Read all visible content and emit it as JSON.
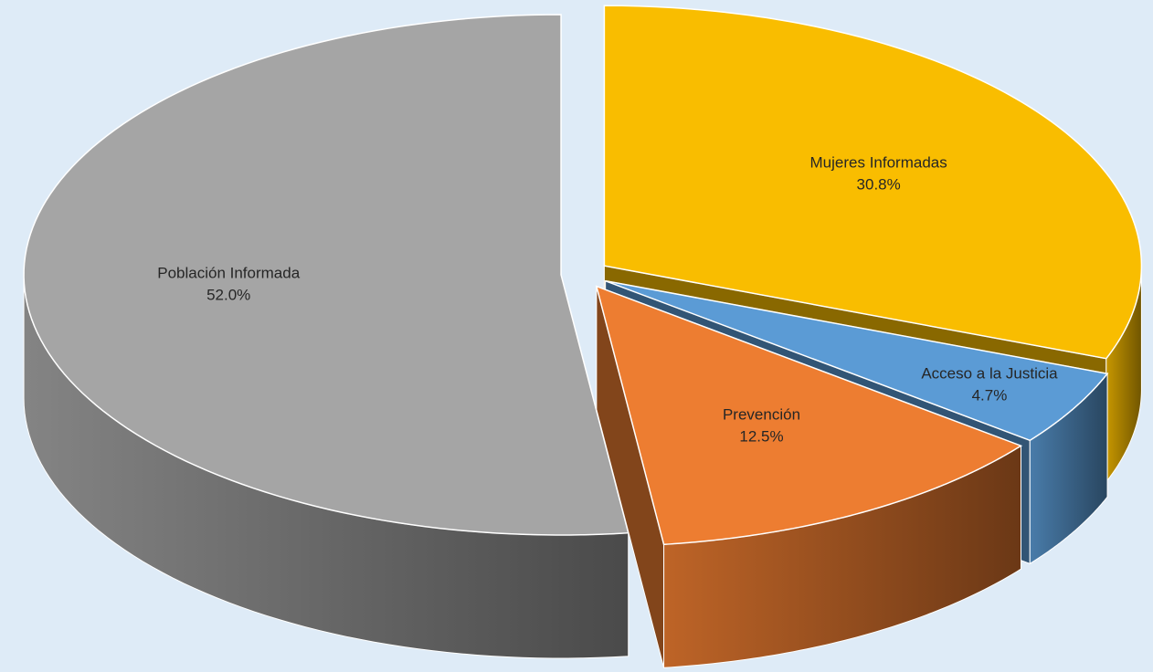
{
  "chart_data": {
    "type": "pie",
    "categories": [
      "Mujeres Informadas",
      "Acceso a la Justicia",
      "Prevención",
      "Población Informada"
    ],
    "values": [
      30.8,
      4.7,
      12.5,
      52.0
    ],
    "value_labels": [
      "30.8%",
      "4.7%",
      "12.5%",
      "52.0%"
    ],
    "colors": [
      "#f9bd00",
      "#5b9bd5",
      "#ed7d31",
      "#a5a5a5"
    ]
  }
}
